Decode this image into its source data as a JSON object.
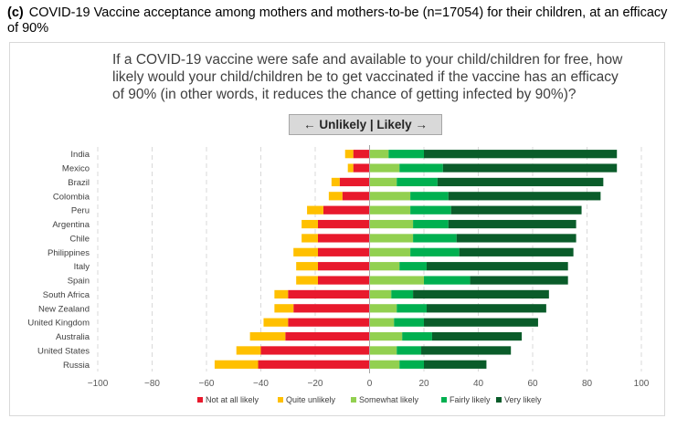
{
  "figure": {
    "panel_label": "(c)",
    "title": "COVID-19 Vaccine acceptance among mothers and mothers-to-be (n=17054) for their children, at an efficacy of 90%"
  },
  "question": "If a COVID-19 vaccine were safe and available to your child/children for free, how likely would your child/children be to get vaccinated if the vaccine has an efficacy of   90% (in other words, it reduces the chance of getting infected by 90%)?",
  "direction_label": "← Unlikely | Likely →",
  "chart_data": {
    "type": "bar",
    "orientation": "horizontal",
    "stacking": "diverging",
    "xlim": [
      -100,
      100
    ],
    "xticks": [
      -100,
      -80,
      -60,
      -40,
      -20,
      0,
      20,
      40,
      60,
      80,
      100
    ],
    "grid": "vertical dashed",
    "legend_position": "bottom",
    "categories": [
      "India",
      "Mexico",
      "Brazil",
      "Colombia",
      "Peru",
      "Argentina",
      "Chile",
      "Philippines",
      "Italy",
      "Spain",
      "South Africa",
      "New Zealand",
      "United Kingdom",
      "Australia",
      "United States",
      "Russia"
    ],
    "series": [
      {
        "name": "Not at all likely",
        "side": "negative",
        "color": "#e8192c",
        "values": [
          6,
          6,
          11,
          10,
          17,
          19,
          19,
          19,
          19,
          19,
          30,
          28,
          30,
          31,
          40,
          41
        ]
      },
      {
        "name": "Quite unlikely",
        "side": "negative",
        "color": "#ffc000",
        "values": [
          3,
          2,
          3,
          5,
          6,
          6,
          6,
          9,
          8,
          8,
          5,
          7,
          9,
          13,
          9,
          16
        ]
      },
      {
        "name": "Somewhat likely",
        "side": "positive",
        "color": "#92d050",
        "values": [
          7,
          11,
          10,
          15,
          15,
          16,
          16,
          15,
          11,
          20,
          8,
          10,
          9,
          12,
          10,
          11
        ]
      },
      {
        "name": "Fairly likely",
        "side": "positive",
        "color": "#00b050",
        "values": [
          13,
          16,
          15,
          14,
          15,
          13,
          16,
          18,
          10,
          17,
          8,
          11,
          11,
          11,
          9,
          9
        ]
      },
      {
        "name": "Very likely",
        "side": "positive",
        "color": "#0a5c2a",
        "values": [
          71,
          64,
          61,
          56,
          48,
          47,
          44,
          42,
          52,
          36,
          50,
          44,
          42,
          33,
          33,
          23
        ]
      }
    ]
  }
}
